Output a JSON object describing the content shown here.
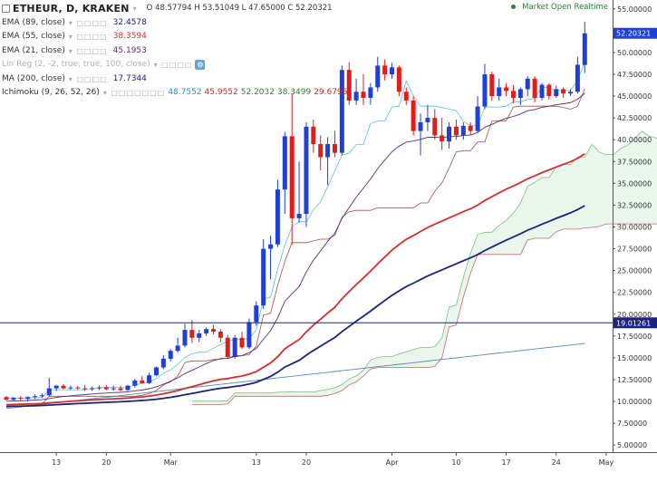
{
  "header": {
    "symbol": "ETHEUR, D, KRAKEN",
    "ohlc": "O 48.57794  H 53.51049  L 47.65000  C 52.20321",
    "status": "Market Open  Realtime"
  },
  "indicators": [
    {
      "label": "EMA (89, close)",
      "value": "32.4578",
      "color": "#1a237e"
    },
    {
      "label": "EMA (55, close)",
      "value": "38.3594",
      "color": "#d32f2f"
    },
    {
      "label": "EMA (21, close)",
      "value": "45.1953",
      "color": "#5e2a78"
    },
    {
      "label": "Lin Reg (2, -2, true, true, 100, close)",
      "value": "",
      "color": "#b0b0b0"
    },
    {
      "label": "MA (200, close)",
      "value": "17.7344",
      "color": "#1a237e"
    }
  ],
  "ichimoku": {
    "label": "Ichimoku (9, 26, 52, 26)",
    "values": [
      {
        "v": "48.7552",
        "color": "#1e88e5"
      },
      {
        "v": "45.9552",
        "color": "#c62828"
      },
      {
        "v": "52.2032",
        "color": "#2e7d32"
      },
      {
        "v": "38.3499",
        "color": "#2e7d32"
      },
      {
        "v": "29.6795",
        "color": "#c62828"
      }
    ]
  },
  "colors": {
    "up": "#1f3fd6",
    "down": "#e21b1b",
    "ema89": "#1a237e",
    "ema55": "#d32f2f",
    "ema21": "#5e2a78",
    "ma200": "#5b88b0",
    "tenkan": "#5bc0de",
    "kijun": "#a0504f",
    "cloud": "#e8f5e9",
    "spanA": "#7cbf7c",
    "spanB": "#c46b6b"
  },
  "chart_data": {
    "type": "candlestick",
    "y_axis": {
      "range": [
        4.5,
        55.5
      ],
      "ticks": [
        "55.00000",
        "52.50000",
        "50.00000",
        "47.50000",
        "45.00000",
        "42.50000",
        "40.00000",
        "37.50000",
        "35.00000",
        "32.50000",
        "30.00000",
        "27.50000",
        "25.00000",
        "22.50000",
        "20.00000",
        "17.50000",
        "15.00000",
        "12.50000",
        "10.00000",
        "7.50000",
        "5.00000"
      ],
      "last_price_label": "52.20321",
      "last_price": 52.20321,
      "hline_label": "19.01261",
      "hline": 19.01261
    },
    "x_axis": {
      "labels": [
        "13",
        "20",
        "Mar",
        "13",
        "20",
        "Apr",
        "10",
        "17",
        "24",
        "May"
      ],
      "label_dates": [
        "2017-02-13",
        "2017-02-20",
        "2017-03-01",
        "2017-03-13",
        "2017-03-20",
        "2017-04-01",
        "2017-04-10",
        "2017-04-17",
        "2017-04-24",
        "2017-05-01"
      ]
    },
    "candles": [
      {
        "d": "2017-02-06",
        "o": 10.5,
        "h": 10.6,
        "l": 10.1,
        "c": 10.2
      },
      {
        "d": "2017-02-07",
        "o": 10.2,
        "h": 10.5,
        "l": 10.1,
        "c": 10.4
      },
      {
        "d": "2017-02-08",
        "o": 10.4,
        "h": 10.6,
        "l": 10.1,
        "c": 10.3
      },
      {
        "d": "2017-02-09",
        "o": 10.3,
        "h": 10.6,
        "l": 10.0,
        "c": 10.5
      },
      {
        "d": "2017-02-10",
        "o": 10.5,
        "h": 10.8,
        "l": 10.3,
        "c": 10.6
      },
      {
        "d": "2017-02-11",
        "o": 10.6,
        "h": 10.9,
        "l": 10.4,
        "c": 10.7
      },
      {
        "d": "2017-02-12",
        "o": 10.7,
        "h": 12.7,
        "l": 10.6,
        "c": 11.5
      },
      {
        "d": "2017-02-13",
        "o": 11.5,
        "h": 11.9,
        "l": 11.2,
        "c": 11.8
      },
      {
        "d": "2017-02-14",
        "o": 11.8,
        "h": 12.0,
        "l": 11.4,
        "c": 11.5
      },
      {
        "d": "2017-02-15",
        "o": 11.5,
        "h": 11.8,
        "l": 11.3,
        "c": 11.6
      },
      {
        "d": "2017-02-16",
        "o": 11.6,
        "h": 11.8,
        "l": 11.3,
        "c": 11.5
      },
      {
        "d": "2017-02-17",
        "o": 11.5,
        "h": 11.9,
        "l": 11.2,
        "c": 11.4
      },
      {
        "d": "2017-02-18",
        "o": 11.4,
        "h": 11.7,
        "l": 11.2,
        "c": 11.5
      },
      {
        "d": "2017-02-19",
        "o": 11.5,
        "h": 11.8,
        "l": 11.3,
        "c": 11.6
      },
      {
        "d": "2017-02-20",
        "o": 11.6,
        "h": 11.9,
        "l": 11.3,
        "c": 11.4
      },
      {
        "d": "2017-02-21",
        "o": 11.4,
        "h": 11.8,
        "l": 11.2,
        "c": 11.5
      },
      {
        "d": "2017-02-22",
        "o": 11.5,
        "h": 11.8,
        "l": 11.2,
        "c": 11.3
      },
      {
        "d": "2017-02-23",
        "o": 11.3,
        "h": 11.9,
        "l": 11.2,
        "c": 11.8
      },
      {
        "d": "2017-02-24",
        "o": 11.8,
        "h": 12.6,
        "l": 11.6,
        "c": 12.4
      },
      {
        "d": "2017-02-25",
        "o": 12.4,
        "h": 12.9,
        "l": 12.1,
        "c": 12.1
      },
      {
        "d": "2017-02-26",
        "o": 12.1,
        "h": 13.3,
        "l": 12.0,
        "c": 13.0
      },
      {
        "d": "2017-02-27",
        "o": 13.0,
        "h": 14.0,
        "l": 12.9,
        "c": 13.9
      },
      {
        "d": "2017-02-28",
        "o": 13.9,
        "h": 15.3,
        "l": 13.7,
        "c": 14.9
      },
      {
        "d": "2017-03-01",
        "o": 14.9,
        "h": 16.0,
        "l": 14.6,
        "c": 15.8
      },
      {
        "d": "2017-03-02",
        "o": 15.8,
        "h": 17.3,
        "l": 15.6,
        "c": 16.4
      },
      {
        "d": "2017-03-03",
        "o": 16.4,
        "h": 18.9,
        "l": 16.2,
        "c": 18.2
      },
      {
        "d": "2017-03-04",
        "o": 18.2,
        "h": 19.3,
        "l": 16.7,
        "c": 17.3
      },
      {
        "d": "2017-03-05",
        "o": 17.3,
        "h": 18.2,
        "l": 16.8,
        "c": 17.8
      },
      {
        "d": "2017-03-06",
        "o": 17.8,
        "h": 18.5,
        "l": 17.5,
        "c": 18.3
      },
      {
        "d": "2017-03-07",
        "o": 18.3,
        "h": 18.8,
        "l": 17.7,
        "c": 18.0
      },
      {
        "d": "2017-03-08",
        "o": 18.0,
        "h": 18.3,
        "l": 16.8,
        "c": 17.3
      },
      {
        "d": "2017-03-09",
        "o": 17.3,
        "h": 17.6,
        "l": 15.0,
        "c": 15.1
      },
      {
        "d": "2017-03-10",
        "o": 15.1,
        "h": 17.6,
        "l": 14.9,
        "c": 17.3
      },
      {
        "d": "2017-03-11",
        "o": 17.3,
        "h": 18.0,
        "l": 16.0,
        "c": 16.2
      },
      {
        "d": "2017-03-12",
        "o": 16.2,
        "h": 19.5,
        "l": 16.0,
        "c": 19.1
      },
      {
        "d": "2017-03-13",
        "o": 19.1,
        "h": 21.5,
        "l": 18.7,
        "c": 21.0
      },
      {
        "d": "2017-03-14",
        "o": 21.0,
        "h": 28.6,
        "l": 20.6,
        "c": 27.5
      },
      {
        "d": "2017-03-15",
        "o": 27.5,
        "h": 29.0,
        "l": 24.0,
        "c": 28.0
      },
      {
        "d": "2017-03-16",
        "o": 28.0,
        "h": 35.4,
        "l": 27.7,
        "c": 34.3
      },
      {
        "d": "2017-03-17",
        "o": 34.3,
        "h": 40.9,
        "l": 31.5,
        "c": 40.4
      },
      {
        "d": "2017-03-18",
        "o": 40.4,
        "h": 45.2,
        "l": 28.0,
        "c": 31.0
      },
      {
        "d": "2017-03-19",
        "o": 31.0,
        "h": 37.5,
        "l": 30.5,
        "c": 31.5
      },
      {
        "d": "2017-03-20",
        "o": 31.5,
        "h": 42.0,
        "l": 30.0,
        "c": 41.5
      },
      {
        "d": "2017-03-21",
        "o": 41.5,
        "h": 42.3,
        "l": 38.5,
        "c": 39.5
      },
      {
        "d": "2017-03-22",
        "o": 39.5,
        "h": 40.5,
        "l": 36.5,
        "c": 38.0
      },
      {
        "d": "2017-03-23",
        "o": 38.0,
        "h": 40.3,
        "l": 34.8,
        "c": 39.5
      },
      {
        "d": "2017-03-24",
        "o": 39.5,
        "h": 41.0,
        "l": 38.0,
        "c": 38.5
      },
      {
        "d": "2017-03-25",
        "o": 38.5,
        "h": 48.5,
        "l": 38.2,
        "c": 48.0
      },
      {
        "d": "2017-03-26",
        "o": 48.0,
        "h": 48.9,
        "l": 44.0,
        "c": 44.5
      },
      {
        "d": "2017-03-27",
        "o": 44.5,
        "h": 47.0,
        "l": 44.0,
        "c": 45.5
      },
      {
        "d": "2017-03-28",
        "o": 45.5,
        "h": 47.5,
        "l": 44.0,
        "c": 44.8
      },
      {
        "d": "2017-03-29",
        "o": 44.8,
        "h": 46.5,
        "l": 44.0,
        "c": 46.0
      },
      {
        "d": "2017-03-30",
        "o": 46.0,
        "h": 49.5,
        "l": 45.5,
        "c": 48.5
      },
      {
        "d": "2017-03-31",
        "o": 48.5,
        "h": 49.2,
        "l": 46.8,
        "c": 47.5
      },
      {
        "d": "2017-04-01",
        "o": 47.5,
        "h": 48.8,
        "l": 47.0,
        "c": 48.3
      },
      {
        "d": "2017-04-02",
        "o": 48.3,
        "h": 48.5,
        "l": 45.0,
        "c": 45.5
      },
      {
        "d": "2017-04-03",
        "o": 45.5,
        "h": 46.0,
        "l": 44.0,
        "c": 44.5
      },
      {
        "d": "2017-04-04",
        "o": 44.5,
        "h": 45.0,
        "l": 40.5,
        "c": 41.0
      },
      {
        "d": "2017-04-05",
        "o": 41.0,
        "h": 43.0,
        "l": 38.2,
        "c": 42.0
      },
      {
        "d": "2017-04-06",
        "o": 42.0,
        "h": 44.0,
        "l": 41.0,
        "c": 42.5
      },
      {
        "d": "2017-04-07",
        "o": 42.5,
        "h": 43.5,
        "l": 40.0,
        "c": 40.5
      },
      {
        "d": "2017-04-08",
        "o": 40.5,
        "h": 42.5,
        "l": 38.8,
        "c": 39.8
      },
      {
        "d": "2017-04-09",
        "o": 39.8,
        "h": 42.0,
        "l": 39.0,
        "c": 41.5
      },
      {
        "d": "2017-04-10",
        "o": 41.5,
        "h": 42.3,
        "l": 40.0,
        "c": 40.5
      },
      {
        "d": "2017-04-11",
        "o": 40.5,
        "h": 42.0,
        "l": 40.0,
        "c": 41.6
      },
      {
        "d": "2017-04-12",
        "o": 41.6,
        "h": 42.0,
        "l": 40.5,
        "c": 41.0
      },
      {
        "d": "2017-04-13",
        "o": 41.0,
        "h": 45.0,
        "l": 40.8,
        "c": 43.8
      },
      {
        "d": "2017-04-14",
        "o": 43.8,
        "h": 48.7,
        "l": 43.5,
        "c": 47.5
      },
      {
        "d": "2017-04-15",
        "o": 47.5,
        "h": 47.8,
        "l": 44.5,
        "c": 45.0
      },
      {
        "d": "2017-04-16",
        "o": 45.0,
        "h": 47.0,
        "l": 44.5,
        "c": 46.0
      },
      {
        "d": "2017-04-17",
        "o": 46.0,
        "h": 46.5,
        "l": 45.0,
        "c": 45.6
      },
      {
        "d": "2017-04-18",
        "o": 45.6,
        "h": 46.3,
        "l": 44.2,
        "c": 44.8
      },
      {
        "d": "2017-04-19",
        "o": 44.8,
        "h": 46.0,
        "l": 44.0,
        "c": 45.8
      },
      {
        "d": "2017-04-20",
        "o": 45.8,
        "h": 47.3,
        "l": 45.0,
        "c": 47.0
      },
      {
        "d": "2017-04-21",
        "o": 47.0,
        "h": 47.3,
        "l": 44.3,
        "c": 44.8
      },
      {
        "d": "2017-04-22",
        "o": 44.8,
        "h": 46.5,
        "l": 44.5,
        "c": 46.3
      },
      {
        "d": "2017-04-23",
        "o": 46.3,
        "h": 46.5,
        "l": 44.6,
        "c": 45.0
      },
      {
        "d": "2017-04-24",
        "o": 45.0,
        "h": 46.2,
        "l": 44.8,
        "c": 45.8
      },
      {
        "d": "2017-04-25",
        "o": 45.8,
        "h": 46.0,
        "l": 44.8,
        "c": 45.3
      },
      {
        "d": "2017-04-26",
        "o": 45.3,
        "h": 45.8,
        "l": 45.0,
        "c": 45.5
      },
      {
        "d": "2017-04-27",
        "o": 45.5,
        "h": 49.5,
        "l": 45.3,
        "c": 48.6
      },
      {
        "d": "2017-04-28",
        "o": 48.57794,
        "h": 53.51049,
        "l": 47.65,
        "c": 52.20321
      }
    ]
  }
}
